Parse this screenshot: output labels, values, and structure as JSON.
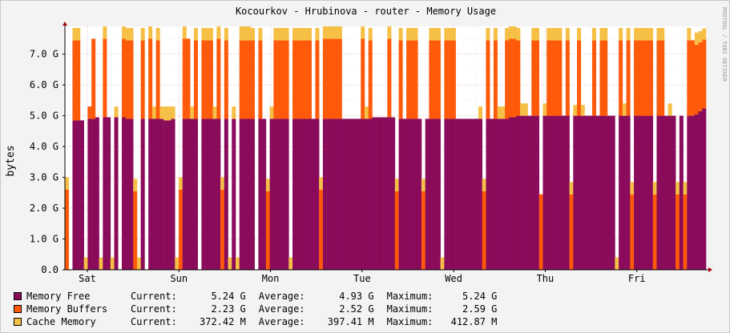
{
  "chart_data": {
    "type": "area",
    "title": "Kocourkov - Hrubinova - router - Memory Usage",
    "ylabel": "bytes",
    "side_label": "RRDTOOL / TOBI OETIKER",
    "ylim": [
      0,
      7.9
    ],
    "yticks": [
      "0.0",
      "1.0 G",
      "2.0 G",
      "3.0 G",
      "4.0 G",
      "5.0 G",
      "6.0 G",
      "7.0 G"
    ],
    "xticks": [
      "Sat",
      "Sun",
      "Mon",
      "Tue",
      "Wed",
      "Thu",
      "Fri"
    ],
    "grid": true,
    "stacked": true,
    "series": [
      {
        "name": "Memory Free",
        "color": "#8B0B5B"
      },
      {
        "name": "Memory Buffers",
        "color": "#FF5A0A"
      },
      {
        "name": "Cache Memory",
        "color": "#F5C045"
      }
    ],
    "samples": [
      {
        "free": 0.0,
        "buffers": 2.6,
        "cache": 0.4
      },
      {
        "free": 0.0,
        "buffers": 0.0,
        "cache": 0.0
      },
      {
        "free": 4.85,
        "buffers": 2.6,
        "cache": 0.4
      },
      {
        "free": 4.85,
        "buffers": 2.6,
        "cache": 0.4
      },
      {
        "free": 4.85,
        "buffers": 0.0,
        "cache": 0.0
      },
      {
        "free": 0.0,
        "buffers": 0.0,
        "cache": 0.4
      },
      {
        "free": 4.9,
        "buffers": 0.4,
        "cache": 0.0
      },
      {
        "free": 4.9,
        "buffers": 2.6,
        "cache": 0.0
      },
      {
        "free": 4.95,
        "buffers": 0.0,
        "cache": 0.0
      },
      {
        "free": 0.0,
        "buffers": 0.0,
        "cache": 0.4
      },
      {
        "free": 4.95,
        "buffers": 2.55,
        "cache": 0.4
      },
      {
        "free": 4.95,
        "buffers": 0.0,
        "cache": 0.0
      },
      {
        "free": 0.0,
        "buffers": 0.0,
        "cache": 0.4
      },
      {
        "free": 4.95,
        "buffers": 0.0,
        "cache": 0.35
      },
      {
        "free": 0.0,
        "buffers": 0.0,
        "cache": 0.0
      },
      {
        "free": 4.95,
        "buffers": 2.55,
        "cache": 0.4
      },
      {
        "free": 4.9,
        "buffers": 2.55,
        "cache": 0.4
      },
      {
        "free": 4.9,
        "buffers": 2.55,
        "cache": 0.4
      },
      {
        "free": 0.0,
        "buffers": 2.55,
        "cache": 0.4
      },
      {
        "free": 0.0,
        "buffers": 0.0,
        "cache": 0.4
      },
      {
        "free": 4.9,
        "buffers": 2.55,
        "cache": 0.4
      },
      {
        "free": 0.0,
        "buffers": 0.0,
        "cache": 0.0
      },
      {
        "free": 4.9,
        "buffers": 2.6,
        "cache": 0.4
      },
      {
        "free": 4.9,
        "buffers": 0.0,
        "cache": 0.4
      },
      {
        "free": 4.9,
        "buffers": 2.55,
        "cache": 0.4
      },
      {
        "free": 4.9,
        "buffers": 0.0,
        "cache": 0.4
      },
      {
        "free": 4.85,
        "buffers": 0.0,
        "cache": 0.45
      },
      {
        "free": 4.85,
        "buffers": 0.0,
        "cache": 0.45
      },
      {
        "free": 4.9,
        "buffers": 0.0,
        "cache": 0.4
      },
      {
        "free": 0.0,
        "buffers": 0.0,
        "cache": 0.4
      },
      {
        "free": 0.0,
        "buffers": 2.6,
        "cache": 0.4
      },
      {
        "free": 4.9,
        "buffers": 2.6,
        "cache": 0.4
      },
      {
        "free": 4.9,
        "buffers": 2.6,
        "cache": 0.0
      },
      {
        "free": 4.9,
        "buffers": 0.0,
        "cache": 0.4
      },
      {
        "free": 4.9,
        "buffers": 2.55,
        "cache": 0.4
      },
      {
        "free": 0.0,
        "buffers": 0.0,
        "cache": 0.0
      },
      {
        "free": 4.9,
        "buffers": 2.55,
        "cache": 0.4
      },
      {
        "free": 4.9,
        "buffers": 2.55,
        "cache": 0.4
      },
      {
        "free": 4.9,
        "buffers": 2.55,
        "cache": 0.4
      },
      {
        "free": 4.9,
        "buffers": 0.0,
        "cache": 0.4
      },
      {
        "free": 4.9,
        "buffers": 2.6,
        "cache": 0.4
      },
      {
        "free": 0.0,
        "buffers": 2.6,
        "cache": 0.4
      },
      {
        "free": 4.9,
        "buffers": 2.55,
        "cache": 0.4
      },
      {
        "free": 0.0,
        "buffers": 0.0,
        "cache": 0.4
      },
      {
        "free": 4.9,
        "buffers": 0.0,
        "cache": 0.4
      },
      {
        "free": 0.0,
        "buffers": 0.0,
        "cache": 0.4
      },
      {
        "free": 4.9,
        "buffers": 2.55,
        "cache": 0.45
      },
      {
        "free": 4.9,
        "buffers": 2.55,
        "cache": 0.45
      },
      {
        "free": 4.9,
        "buffers": 2.55,
        "cache": 0.45
      },
      {
        "free": 4.9,
        "buffers": 2.55,
        "cache": 0.4
      },
      {
        "free": 0.0,
        "buffers": 0.0,
        "cache": 0.0
      },
      {
        "free": 4.9,
        "buffers": 2.55,
        "cache": 0.4
      },
      {
        "free": 4.9,
        "buffers": 0.0,
        "cache": 0.0
      },
      {
        "free": 0.0,
        "buffers": 2.55,
        "cache": 0.4
      },
      {
        "free": 4.9,
        "buffers": 0.0,
        "cache": 0.4
      },
      {
        "free": 4.9,
        "buffers": 2.55,
        "cache": 0.4
      },
      {
        "free": 4.9,
        "buffers": 2.55,
        "cache": 0.4
      },
      {
        "free": 4.9,
        "buffers": 2.55,
        "cache": 0.4
      },
      {
        "free": 4.9,
        "buffers": 2.55,
        "cache": 0.4
      },
      {
        "free": 0.0,
        "buffers": 0.0,
        "cache": 0.4
      },
      {
        "free": 4.9,
        "buffers": 2.55,
        "cache": 0.4
      },
      {
        "free": 4.9,
        "buffers": 2.55,
        "cache": 0.4
      },
      {
        "free": 4.9,
        "buffers": 2.55,
        "cache": 0.4
      },
      {
        "free": 4.9,
        "buffers": 2.55,
        "cache": 0.4
      },
      {
        "free": 4.9,
        "buffers": 2.55,
        "cache": 0.4
      },
      {
        "free": 4.9,
        "buffers": 0.0,
        "cache": 0.0
      },
      {
        "free": 4.9,
        "buffers": 2.55,
        "cache": 0.4
      },
      {
        "free": 0.0,
        "buffers": 2.6,
        "cache": 0.4
      },
      {
        "free": 4.9,
        "buffers": 2.6,
        "cache": 0.4
      },
      {
        "free": 4.9,
        "buffers": 2.6,
        "cache": 0.4
      },
      {
        "free": 4.9,
        "buffers": 2.6,
        "cache": 0.4
      },
      {
        "free": 4.9,
        "buffers": 2.6,
        "cache": 0.4
      },
      {
        "free": 4.9,
        "buffers": 2.6,
        "cache": 0.4
      },
      {
        "free": 4.9,
        "buffers": 0.0,
        "cache": 0.0
      },
      {
        "free": 4.9,
        "buffers": 0.0,
        "cache": 0.0
      },
      {
        "free": 4.9,
        "buffers": 0.0,
        "cache": 0.0
      },
      {
        "free": 4.9,
        "buffers": 0.0,
        "cache": 0.0
      },
      {
        "free": 4.9,
        "buffers": 0.0,
        "cache": 0.0
      },
      {
        "free": 4.9,
        "buffers": 2.6,
        "cache": 0.4
      },
      {
        "free": 4.9,
        "buffers": 0.0,
        "cache": 0.4
      },
      {
        "free": 4.9,
        "buffers": 2.55,
        "cache": 0.4
      },
      {
        "free": 4.95,
        "buffers": 0.0,
        "cache": 0.0
      },
      {
        "free": 4.95,
        "buffers": 0.0,
        "cache": 0.0
      },
      {
        "free": 4.95,
        "buffers": 0.0,
        "cache": 0.0
      },
      {
        "free": 4.95,
        "buffers": 0.0,
        "cache": 0.0
      },
      {
        "free": 4.95,
        "buffers": 2.55,
        "cache": 0.4
      },
      {
        "free": 4.95,
        "buffers": 0.0,
        "cache": 0.0
      },
      {
        "free": 0.0,
        "buffers": 2.55,
        "cache": 0.4
      },
      {
        "free": 4.9,
        "buffers": 2.55,
        "cache": 0.4
      },
      {
        "free": 4.9,
        "buffers": 0.0,
        "cache": 0.0
      },
      {
        "free": 4.9,
        "buffers": 2.55,
        "cache": 0.4
      },
      {
        "free": 4.9,
        "buffers": 2.55,
        "cache": 0.4
      },
      {
        "free": 4.9,
        "buffers": 2.55,
        "cache": 0.4
      },
      {
        "free": 4.9,
        "buffers": 0.0,
        "cache": 0.0
      },
      {
        "free": 0.0,
        "buffers": 2.55,
        "cache": 0.4
      },
      {
        "free": 4.9,
        "buffers": 0.0,
        "cache": 0.0
      },
      {
        "free": 4.9,
        "buffers": 2.55,
        "cache": 0.4
      },
      {
        "free": 4.9,
        "buffers": 2.55,
        "cache": 0.4
      },
      {
        "free": 4.9,
        "buffers": 2.55,
        "cache": 0.4
      },
      {
        "free": 0.0,
        "buffers": 0.0,
        "cache": 0.4
      },
      {
        "free": 4.9,
        "buffers": 2.55,
        "cache": 0.4
      },
      {
        "free": 4.9,
        "buffers": 2.55,
        "cache": 0.4
      },
      {
        "free": 4.9,
        "buffers": 2.55,
        "cache": 0.4
      },
      {
        "free": 4.9,
        "buffers": 0.0,
        "cache": 0.0
      },
      {
        "free": 4.9,
        "buffers": 0.0,
        "cache": 0.0
      },
      {
        "free": 4.9,
        "buffers": 0.0,
        "cache": 0.0
      },
      {
        "free": 4.9,
        "buffers": 0.0,
        "cache": 0.0
      },
      {
        "free": 4.9,
        "buffers": 0.0,
        "cache": 0.0
      },
      {
        "free": 4.9,
        "buffers": 0.0,
        "cache": 0.0
      },
      {
        "free": 4.9,
        "buffers": 0.0,
        "cache": 0.4
      },
      {
        "free": 0.0,
        "buffers": 2.55,
        "cache": 0.4
      },
      {
        "free": 4.9,
        "buffers": 2.55,
        "cache": 0.4
      },
      {
        "free": 4.9,
        "buffers": 0.0,
        "cache": 0.0
      },
      {
        "free": 4.9,
        "buffers": 2.55,
        "cache": 0.4
      },
      {
        "free": 4.9,
        "buffers": 0.0,
        "cache": 0.4
      },
      {
        "free": 4.9,
        "buffers": 0.0,
        "cache": 0.4
      },
      {
        "free": 4.9,
        "buffers": 2.55,
        "cache": 0.4
      },
      {
        "free": 4.95,
        "buffers": 2.55,
        "cache": 0.4
      },
      {
        "free": 4.95,
        "buffers": 2.55,
        "cache": 0.4
      },
      {
        "free": 5.0,
        "buffers": 2.45,
        "cache": 0.4
      },
      {
        "free": 5.0,
        "buffers": 0.0,
        "cache": 0.4
      },
      {
        "free": 5.0,
        "buffers": 0.0,
        "cache": 0.4
      },
      {
        "free": 5.0,
        "buffers": 0.0,
        "cache": 0.0
      },
      {
        "free": 5.0,
        "buffers": 2.45,
        "cache": 0.4
      },
      {
        "free": 5.0,
        "buffers": 2.45,
        "cache": 0.4
      },
      {
        "free": 0.0,
        "buffers": 2.45,
        "cache": 0.0
      },
      {
        "free": 5.0,
        "buffers": 0.0,
        "cache": 0.4
      },
      {
        "free": 5.0,
        "buffers": 2.45,
        "cache": 0.4
      },
      {
        "free": 5.0,
        "buffers": 2.45,
        "cache": 0.4
      },
      {
        "free": 5.0,
        "buffers": 2.45,
        "cache": 0.4
      },
      {
        "free": 5.0,
        "buffers": 2.45,
        "cache": 0.4
      },
      {
        "free": 5.0,
        "buffers": 0.0,
        "cache": 0.0
      },
      {
        "free": 5.0,
        "buffers": 2.45,
        "cache": 0.4
      },
      {
        "free": 0.0,
        "buffers": 2.45,
        "cache": 0.4
      },
      {
        "free": 5.0,
        "buffers": 0.0,
        "cache": 0.35
      },
      {
        "free": 5.0,
        "buffers": 2.45,
        "cache": 0.4
      },
      {
        "free": 5.0,
        "buffers": 0.0,
        "cache": 0.35
      },
      {
        "free": 5.0,
        "buffers": 0.0,
        "cache": 0.0
      },
      {
        "free": 5.0,
        "buffers": 0.0,
        "cache": 0.0
      },
      {
        "free": 5.0,
        "buffers": 2.45,
        "cache": 0.4
      },
      {
        "free": 5.0,
        "buffers": 0.0,
        "cache": 0.0
      },
      {
        "free": 5.0,
        "buffers": 2.45,
        "cache": 0.4
      },
      {
        "free": 5.0,
        "buffers": 2.45,
        "cache": 0.4
      },
      {
        "free": 5.0,
        "buffers": 0.0,
        "cache": 0.0
      },
      {
        "free": 5.0,
        "buffers": 0.0,
        "cache": 0.0
      },
      {
        "free": 0.0,
        "buffers": 0.0,
        "cache": 0.4
      },
      {
        "free": 5.0,
        "buffers": 2.45,
        "cache": 0.4
      },
      {
        "free": 5.0,
        "buffers": 0.0,
        "cache": 0.4
      },
      {
        "free": 5.0,
        "buffers": 2.45,
        "cache": 0.4
      },
      {
        "free": 0.0,
        "buffers": 2.45,
        "cache": 0.4
      },
      {
        "free": 5.0,
        "buffers": 2.45,
        "cache": 0.4
      },
      {
        "free": 5.0,
        "buffers": 2.45,
        "cache": 0.4
      },
      {
        "free": 5.0,
        "buffers": 2.45,
        "cache": 0.4
      },
      {
        "free": 5.0,
        "buffers": 2.45,
        "cache": 0.4
      },
      {
        "free": 5.0,
        "buffers": 2.45,
        "cache": 0.4
      },
      {
        "free": 0.0,
        "buffers": 2.45,
        "cache": 0.4
      },
      {
        "free": 5.0,
        "buffers": 2.45,
        "cache": 0.4
      },
      {
        "free": 5.0,
        "buffers": 2.45,
        "cache": 0.4
      },
      {
        "free": 5.0,
        "buffers": 0.0,
        "cache": 0.0
      },
      {
        "free": 5.0,
        "buffers": 0.0,
        "cache": 0.4
      },
      {
        "free": 5.0,
        "buffers": 0.0,
        "cache": 0.0
      },
      {
        "free": 0.0,
        "buffers": 2.45,
        "cache": 0.4
      },
      {
        "free": 5.0,
        "buffers": 0.0,
        "cache": 0.0
      },
      {
        "free": 0.0,
        "buffers": 2.45,
        "cache": 0.4
      },
      {
        "free": 5.0,
        "buffers": 2.45,
        "cache": 0.4
      },
      {
        "free": 5.0,
        "buffers": 2.45,
        "cache": 0.0
      },
      {
        "free": 5.05,
        "buffers": 2.25,
        "cache": 0.4
      },
      {
        "free": 5.15,
        "buffers": 2.23,
        "cache": 0.37
      },
      {
        "free": 5.24,
        "buffers": 2.23,
        "cache": 0.37
      }
    ],
    "legend": [
      {
        "name": "Memory Free",
        "current": "5.24 G",
        "average": "4.93 G",
        "maximum": "5.24 G"
      },
      {
        "name": "Memory Buffers",
        "current": "2.23 G",
        "average": "2.52 G",
        "maximum": "2.59 G"
      },
      {
        "name": "Cache Memory",
        "current": "372.42 M",
        "average": "397.41 M",
        "maximum": "412.87 M"
      }
    ],
    "stat_labels": {
      "current": "Current:",
      "average": "Average:",
      "maximum": "Maximum:"
    }
  }
}
